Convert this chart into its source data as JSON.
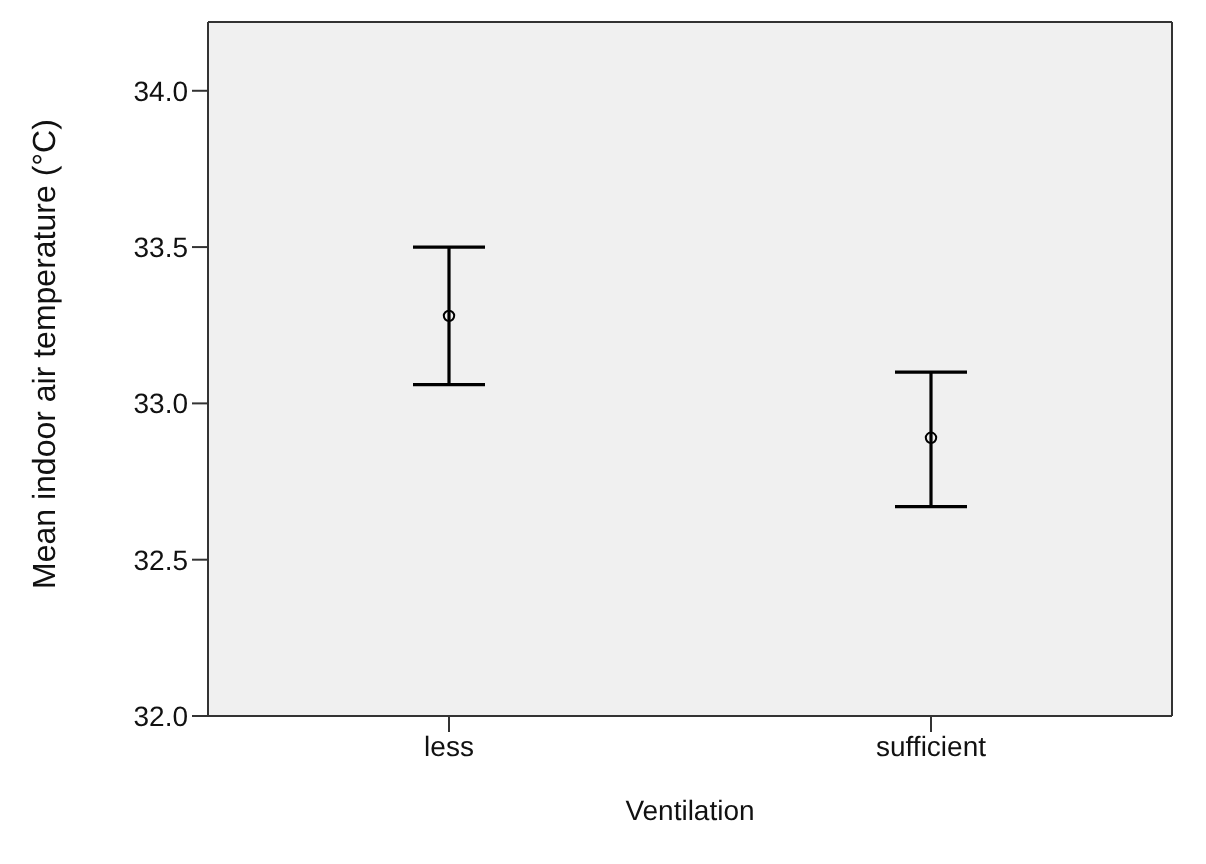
{
  "chart_data": {
    "type": "scatter",
    "xlabel": "Ventilation",
    "ylabel": "Mean indoor air temperature (°C)",
    "categories": [
      "less",
      "sufficient"
    ],
    "values": [
      33.28,
      32.89
    ],
    "errors": [
      [
        33.06,
        33.5
      ],
      [
        32.67,
        33.1
      ]
    ],
    "color": "#000000",
    "marker": "circle",
    "ylim": [
      32,
      34.22
    ],
    "yticks": [
      {
        "value": 32,
        "label": "32.0"
      },
      {
        "value": 32.5,
        "label": "32.5"
      },
      {
        "value": 33,
        "label": "33.0"
      },
      {
        "value": 33.5,
        "label": "33.5"
      },
      {
        "value": 34,
        "label": "34.0"
      }
    ],
    "grid": false
  }
}
